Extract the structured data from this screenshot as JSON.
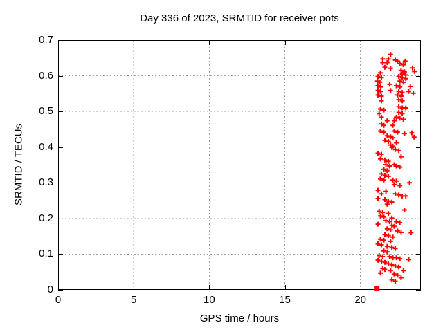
{
  "colors": {
    "background": "#ffffff",
    "frame": "#000000",
    "grid": "#9e9e9e",
    "marker": "#ff0000",
    "text": "#000000"
  },
  "chart_data": {
    "type": "scatter",
    "title": "Day 336 of 2023, SRMTID for receiver pots",
    "xlabel": "GPS time / hours",
    "ylabel": "SRMTID / TECUs",
    "xlim": [
      0,
      24
    ],
    "ylim": [
      0,
      0.7
    ],
    "grid": true,
    "legend": "none",
    "xticks": {
      "values": [
        0,
        5,
        10,
        15,
        20
      ],
      "labels": [
        "0",
        "5",
        "10",
        "15",
        "20"
      ]
    },
    "yticks": {
      "values": [
        0,
        0.1,
        0.2,
        0.3,
        0.4,
        0.5,
        0.6,
        0.7
      ],
      "labels": [
        "0",
        "0.1",
        "0.2",
        "0.3",
        "0.4",
        "0.5",
        "0.6",
        "0.7"
      ]
    },
    "series": [
      {
        "name": "SRMTID",
        "marker": "plus",
        "color": "#ff0000",
        "points": [
          [
            22.0,
            0.66
          ],
          [
            21.47,
            0.647
          ],
          [
            21.85,
            0.647
          ],
          [
            22.31,
            0.644
          ],
          [
            22.46,
            0.641
          ],
          [
            21.47,
            0.637
          ],
          [
            21.77,
            0.637
          ],
          [
            22.96,
            0.641
          ],
          [
            22.61,
            0.634
          ],
          [
            22.84,
            0.631
          ],
          [
            21.62,
            0.624
          ],
          [
            22.0,
            0.621
          ],
          [
            22.69,
            0.615
          ],
          [
            22.92,
            0.611
          ],
          [
            21.32,
            0.608
          ],
          [
            22.77,
            0.605
          ],
          [
            23.0,
            0.602
          ],
          [
            21.16,
            0.598
          ],
          [
            21.39,
            0.595
          ],
          [
            22.54,
            0.598
          ],
          [
            22.77,
            0.595
          ],
          [
            23.0,
            0.592
          ],
          [
            21.13,
            0.585
          ],
          [
            21.29,
            0.582
          ],
          [
            22.61,
            0.585
          ],
          [
            22.84,
            0.582
          ],
          [
            21.16,
            0.572
          ],
          [
            21.35,
            0.569
          ],
          [
            21.93,
            0.576
          ],
          [
            22.38,
            0.572
          ],
          [
            22.61,
            0.569
          ],
          [
            21.16,
            0.559
          ],
          [
            21.32,
            0.556
          ],
          [
            22.0,
            0.559
          ],
          [
            22.54,
            0.556
          ],
          [
            22.77,
            0.553
          ],
          [
            21.16,
            0.546
          ],
          [
            21.39,
            0.543
          ],
          [
            22.46,
            0.546
          ],
          [
            22.69,
            0.543
          ],
          [
            21.39,
            0.53
          ],
          [
            22.54,
            0.533
          ],
          [
            22.77,
            0.53
          ],
          [
            23.0,
            0.51
          ],
          [
            22.54,
            0.513
          ],
          [
            22.77,
            0.51
          ],
          [
            21.32,
            0.507
          ],
          [
            21.55,
            0.504
          ],
          [
            21.24,
            0.494
          ],
          [
            22.54,
            0.497
          ],
          [
            22.77,
            0.494
          ],
          [
            21.39,
            0.484
          ],
          [
            22.38,
            0.484
          ],
          [
            22.61,
            0.481
          ],
          [
            22.84,
            0.478
          ],
          [
            21.77,
            0.474
          ],
          [
            22.23,
            0.474
          ],
          [
            21.39,
            0.465
          ],
          [
            21.55,
            0.461
          ],
          [
            22.15,
            0.461
          ],
          [
            21.32,
            0.445
          ],
          [
            21.55,
            0.442
          ],
          [
            22.23,
            0.445
          ],
          [
            22.46,
            0.442
          ],
          [
            22.92,
            0.438
          ],
          [
            21.77,
            0.432
          ],
          [
            22.0,
            0.429
          ],
          [
            22.15,
            0.426
          ],
          [
            21.62,
            0.419
          ],
          [
            21.85,
            0.416
          ],
          [
            22.38,
            0.412
          ],
          [
            22.0,
            0.406
          ],
          [
            22.15,
            0.403
          ],
          [
            22.08,
            0.399
          ],
          [
            22.31,
            0.393
          ],
          [
            22.54,
            0.39
          ],
          [
            21.16,
            0.383
          ],
          [
            21.39,
            0.38
          ],
          [
            22.69,
            0.373
          ],
          [
            21.32,
            0.367
          ],
          [
            21.62,
            0.364
          ],
          [
            21.85,
            0.36
          ],
          [
            21.69,
            0.351
          ],
          [
            21.93,
            0.347
          ],
          [
            22.23,
            0.351
          ],
          [
            22.38,
            0.347
          ],
          [
            22.61,
            0.344
          ],
          [
            21.55,
            0.338
          ],
          [
            21.77,
            0.334
          ],
          [
            21.39,
            0.325
          ],
          [
            21.62,
            0.321
          ],
          [
            21.85,
            0.318
          ],
          [
            21.32,
            0.311
          ],
          [
            21.55,
            0.308
          ],
          [
            22.15,
            0.308
          ],
          [
            22.38,
            0.305
          ],
          [
            22.23,
            0.295
          ],
          [
            22.61,
            0.292
          ],
          [
            21.16,
            0.279
          ],
          [
            21.69,
            0.276
          ],
          [
            21.39,
            0.269
          ],
          [
            22.31,
            0.269
          ],
          [
            22.54,
            0.266
          ],
          [
            22.77,
            0.263
          ],
          [
            23.0,
            0.263
          ],
          [
            21.16,
            0.256
          ],
          [
            21.62,
            0.253
          ],
          [
            21.85,
            0.249
          ],
          [
            22.08,
            0.246
          ],
          [
            21.77,
            0.24
          ],
          [
            22.92,
            0.224
          ],
          [
            21.24,
            0.22
          ],
          [
            21.47,
            0.217
          ],
          [
            21.85,
            0.214
          ],
          [
            21.32,
            0.207
          ],
          [
            21.55,
            0.204
          ],
          [
            22.08,
            0.201
          ],
          [
            21.69,
            0.194
          ],
          [
            21.93,
            0.191
          ],
          [
            22.38,
            0.191
          ],
          [
            22.61,
            0.188
          ],
          [
            21.16,
            0.184
          ],
          [
            22.08,
            0.181
          ],
          [
            22.23,
            0.178
          ],
          [
            21.77,
            0.171
          ],
          [
            22.0,
            0.168
          ],
          [
            22.46,
            0.165
          ],
          [
            22.69,
            0.161
          ],
          [
            21.62,
            0.155
          ],
          [
            21.85,
            0.152
          ],
          [
            22.15,
            0.148
          ],
          [
            21.32,
            0.142
          ],
          [
            21.55,
            0.139
          ],
          [
            22.0,
            0.136
          ],
          [
            21.16,
            0.129
          ],
          [
            21.39,
            0.126
          ],
          [
            21.77,
            0.122
          ],
          [
            22.08,
            0.119
          ],
          [
            22.31,
            0.116
          ],
          [
            21.55,
            0.109
          ],
          [
            21.77,
            0.106
          ],
          [
            21.24,
            0.096
          ],
          [
            21.47,
            0.093
          ],
          [
            21.93,
            0.093
          ],
          [
            22.15,
            0.09
          ],
          [
            22.38,
            0.09
          ],
          [
            22.61,
            0.087
          ],
          [
            21.16,
            0.083
          ],
          [
            21.39,
            0.08
          ],
          [
            21.62,
            0.077
          ],
          [
            21.85,
            0.073
          ],
          [
            22.08,
            0.07
          ],
          [
            22.31,
            0.067
          ],
          [
            22.54,
            0.064
          ],
          [
            21.47,
            0.06
          ],
          [
            21.62,
            0.057
          ],
          [
            22.0,
            0.054
          ],
          [
            22.84,
            0.054
          ],
          [
            21.32,
            0.047
          ],
          [
            22.23,
            0.044
          ],
          [
            22.46,
            0.041
          ],
          [
            22.69,
            0.034
          ],
          [
            22.08,
            0.028
          ],
          [
            22.31,
            0.024
          ],
          [
            23.45,
            0.622
          ],
          [
            23.58,
            0.612
          ],
          [
            23.3,
            0.57
          ],
          [
            23.5,
            0.551
          ],
          [
            23.2,
            0.556
          ],
          [
            23.4,
            0.44
          ],
          [
            23.55,
            0.428
          ],
          [
            23.25,
            0.3
          ],
          [
            23.35,
            0.16
          ],
          [
            23.2,
            0.085
          ]
        ]
      },
      {
        "name": "start marker",
        "marker": "filled-square",
        "color": "#ff0000",
        "points": [
          [
            21.1,
            0.004
          ]
        ]
      }
    ]
  }
}
